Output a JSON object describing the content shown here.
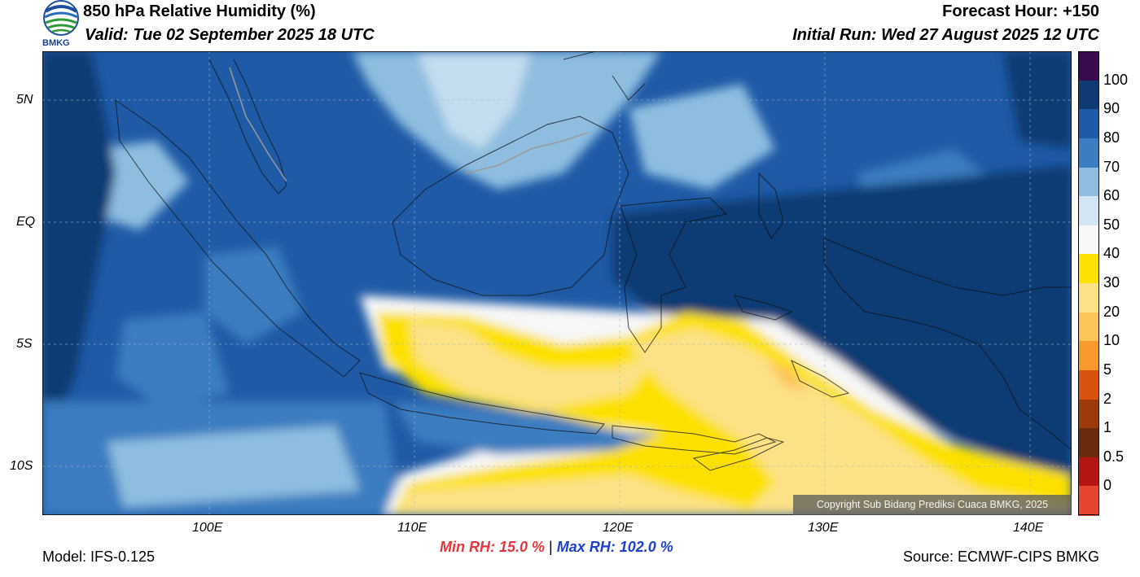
{
  "header": {
    "title": "850 hPa Relative Humidity (%)",
    "valid": "Valid: Tue 02 September 2025 18 UTC",
    "forecast_hour": "Forecast Hour: +150",
    "initial_run": "Initial Run: Wed 27 August 2025 12 UTC",
    "logo_text": "BMKG"
  },
  "map": {
    "lat_labels": [
      "5N",
      "EQ",
      "5S",
      "10S"
    ],
    "lon_labels": [
      "100E",
      "110E",
      "120E",
      "130E",
      "140E"
    ],
    "copyright": "Copyright Sub Bidang Prediksi Cuaca BMKG, 2025"
  },
  "colorbar": {
    "labels": [
      "100",
      "90",
      "80",
      "70",
      "60",
      "50",
      "40",
      "30",
      "20",
      "10",
      "5",
      "2",
      "1",
      "0.5",
      "0"
    ],
    "colors": [
      "#3a0a4f",
      "#0f3a73",
      "#1f5aa6",
      "#3b7dc0",
      "#8ebde0",
      "#d2e5f2",
      "#f7f7f7",
      "#fce106",
      "#fde186",
      "#fdc45a",
      "#fb9a2c",
      "#d9530e",
      "#9c3a09",
      "#6b2a0b",
      "#b21512",
      "#e64530"
    ]
  },
  "stats": {
    "min_rh": "Min RH:  15.0 %",
    "separator": "|",
    "max_rh": "Max RH: 102.0 %"
  },
  "footer": {
    "model": "Model: IFS-0.125",
    "source": "Source: ECMWF-CIPS BMKG"
  }
}
